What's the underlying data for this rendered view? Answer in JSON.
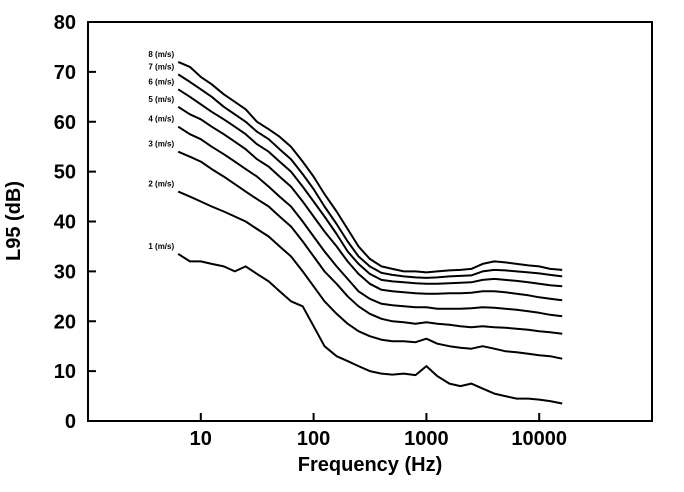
{
  "chart_data": {
    "type": "line",
    "title": "",
    "xlabel": "Frequency (Hz)",
    "ylabel": "L95 (dB)",
    "xscale": "log",
    "xlim": [
      1,
      100000
    ],
    "ylim": [
      0,
      80
    ],
    "x_ticks": [
      10,
      100,
      1000,
      10000
    ],
    "x_tick_labels": [
      "10",
      "100",
      "1000",
      "10000"
    ],
    "y_ticks": [
      0,
      10,
      20,
      30,
      40,
      50,
      60,
      70,
      80
    ],
    "y_tick_labels": [
      "0",
      "10",
      "20",
      "30",
      "40",
      "50",
      "60",
      "70",
      "80"
    ],
    "grid": false,
    "x": [
      6.3,
      8,
      10,
      12.5,
      16,
      20,
      25,
      31.5,
      40,
      50,
      63,
      80,
      100,
      125,
      160,
      200,
      250,
      315,
      400,
      500,
      630,
      800,
      1000,
      1250,
      1600,
      2000,
      2500,
      3150,
      4000,
      5000,
      6300,
      8000,
      10000,
      12500,
      16000
    ],
    "series": [
      {
        "name": "8 (m/s)",
        "values": [
          72,
          71,
          69,
          67.5,
          65.5,
          64,
          62.5,
          60,
          58.5,
          57,
          55,
          52,
          49,
          45.5,
          42,
          38.5,
          35,
          32.5,
          31,
          30.5,
          30,
          30,
          29.8,
          30,
          30.2,
          30.3,
          30.5,
          31.5,
          32,
          31.8,
          31.5,
          31.2,
          31,
          30.5,
          30.3
        ]
      },
      {
        "name": "7 (m/s)",
        "values": [
          69.5,
          68,
          66.5,
          65,
          63,
          61.5,
          60,
          58,
          56.5,
          54.5,
          52.5,
          49.5,
          46.5,
          43,
          39.5,
          36,
          33,
          31,
          29.7,
          29.3,
          29,
          28.8,
          28.7,
          28.8,
          29,
          29.1,
          29.2,
          30,
          30.3,
          30.2,
          30,
          29.8,
          29.6,
          29.3,
          29
        ]
      },
      {
        "name": "6 (m/s)",
        "values": [
          66.5,
          65,
          63.5,
          62,
          60.5,
          59,
          57.5,
          55.5,
          54,
          52,
          50,
          47,
          44,
          41,
          37.5,
          34,
          31.5,
          29.5,
          28.3,
          28,
          27.8,
          27.6,
          27.5,
          27.5,
          27.6,
          27.7,
          27.8,
          28.3,
          28.5,
          28.3,
          28.1,
          27.8,
          27.5,
          27.2,
          27
        ]
      },
      {
        "name": "5 (m/s)",
        "values": [
          63,
          61.5,
          60.5,
          59,
          57.5,
          56,
          54.5,
          52.5,
          51,
          49,
          47,
          44,
          41,
          38,
          35,
          32,
          29.5,
          27.5,
          26.3,
          26,
          25.8,
          25.6,
          25.5,
          25.5,
          25.6,
          25.6,
          25.7,
          26,
          26,
          25.8,
          25.5,
          25.2,
          24.8,
          24.5,
          24.2
        ]
      },
      {
        "name": "4 (m/s)",
        "values": [
          59,
          57.5,
          56.5,
          55,
          53.5,
          52,
          50.5,
          49,
          47,
          45,
          43,
          40,
          37,
          34,
          31,
          28.5,
          26,
          24.5,
          23.5,
          23.2,
          23,
          22.8,
          22.8,
          22.5,
          22.5,
          22.5,
          22.6,
          22.8,
          22.7,
          22.5,
          22.3,
          22,
          21.7,
          21.3,
          21
        ]
      },
      {
        "name": "3 (m/s)",
        "values": [
          54,
          53,
          52,
          50.5,
          49,
          47.5,
          46,
          44.5,
          43,
          41,
          39,
          36,
          33,
          30,
          27.5,
          25,
          23,
          21.5,
          20.5,
          20,
          19.8,
          19.5,
          19.8,
          19.5,
          19.3,
          19,
          18.8,
          19,
          18.8,
          18.7,
          18.5,
          18.3,
          18,
          17.8,
          17.5
        ]
      },
      {
        "name": "2 (m/s)",
        "values": [
          46,
          45,
          44,
          43,
          42,
          41,
          40,
          38.5,
          37,
          35,
          33,
          30,
          27,
          24,
          21.5,
          19.5,
          18,
          17,
          16.3,
          16,
          16,
          15.8,
          16.5,
          15.5,
          15,
          14.7,
          14.5,
          15,
          14.5,
          14,
          13.8,
          13.5,
          13.2,
          13,
          12.5
        ]
      },
      {
        "name": "1 (m/s)",
        "values": [
          33.5,
          32,
          32,
          31.5,
          31,
          30,
          31,
          29.5,
          28,
          26,
          24,
          23,
          19,
          15,
          13,
          12,
          11,
          10,
          9.5,
          9.3,
          9.5,
          9.2,
          11,
          9,
          7.5,
          7,
          7.5,
          6.5,
          5.5,
          5,
          4.5,
          4.5,
          4.3,
          4,
          3.5
        ]
      }
    ]
  }
}
